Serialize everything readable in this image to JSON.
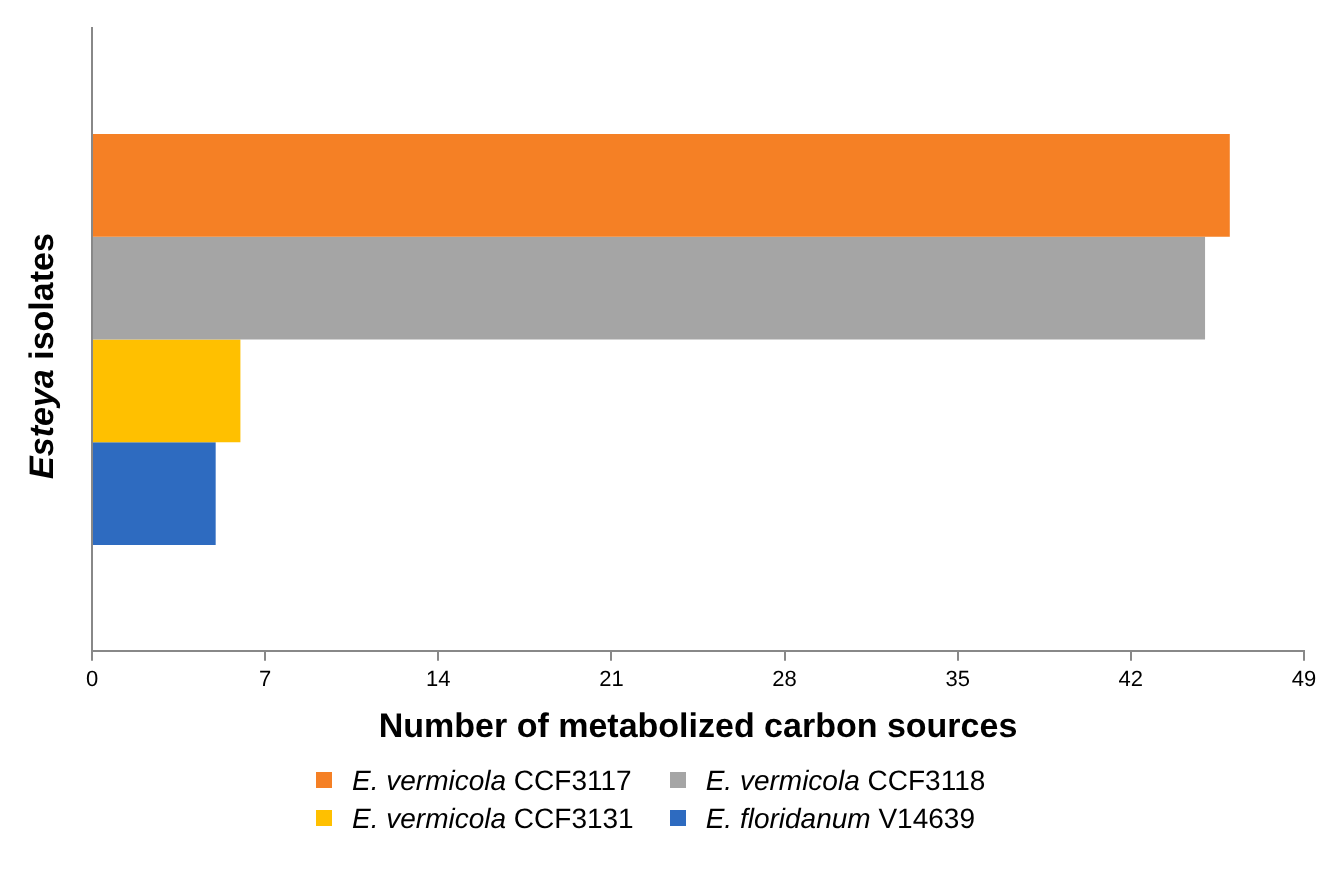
{
  "chart_data": {
    "type": "bar",
    "orientation": "horizontal",
    "xlabel": "Number of metabolized carbon sources",
    "ylabel": "Esteya isolates",
    "categories": [
      null
    ],
    "series": [
      {
        "name": "E. vermicola CCF3117",
        "color": "#f58025",
        "values": [
          46
        ]
      },
      {
        "name": "E. vermicola CCF3118",
        "color": "#a5a5a5",
        "values": [
          45
        ]
      },
      {
        "name": "E. vermicola CCF3131",
        "color": "#ffc000",
        "values": [
          6
        ]
      },
      {
        "name": "E. floridanum V14639",
        "color": "#2e6bc0",
        "values": [
          5
        ]
      }
    ],
    "xlim": [
      0,
      49
    ],
    "xticks": [
      0,
      7,
      14,
      21,
      28,
      35,
      42,
      49
    ],
    "grid": false,
    "legend": "bottom"
  }
}
